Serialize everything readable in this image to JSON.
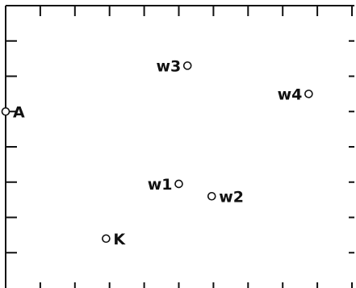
{
  "chart_data": {
    "type": "scatter",
    "x_range": [
      0,
      10
    ],
    "y_range": [
      0,
      8
    ],
    "ticks_x": [
      1,
      2,
      3,
      4,
      5,
      6,
      7,
      8,
      9,
      10
    ],
    "ticks_y": [
      1,
      2,
      3,
      4,
      5,
      6,
      7,
      8
    ],
    "grid": false,
    "points": [
      {
        "label": "A",
        "x": 0.0,
        "y": 5.0,
        "label_side": "right"
      },
      {
        "label": "w1",
        "x": 5.0,
        "y": 2.95,
        "label_side": "left"
      },
      {
        "label": "w2",
        "x": 5.95,
        "y": 2.6,
        "label_side": "right"
      },
      {
        "label": "w3",
        "x": 5.25,
        "y": 6.3,
        "label_side": "left"
      },
      {
        "label": "w4",
        "x": 8.75,
        "y": 5.5,
        "label_side": "left"
      },
      {
        "label": "K",
        "x": 2.9,
        "y": 1.4,
        "label_side": "right"
      }
    ]
  }
}
